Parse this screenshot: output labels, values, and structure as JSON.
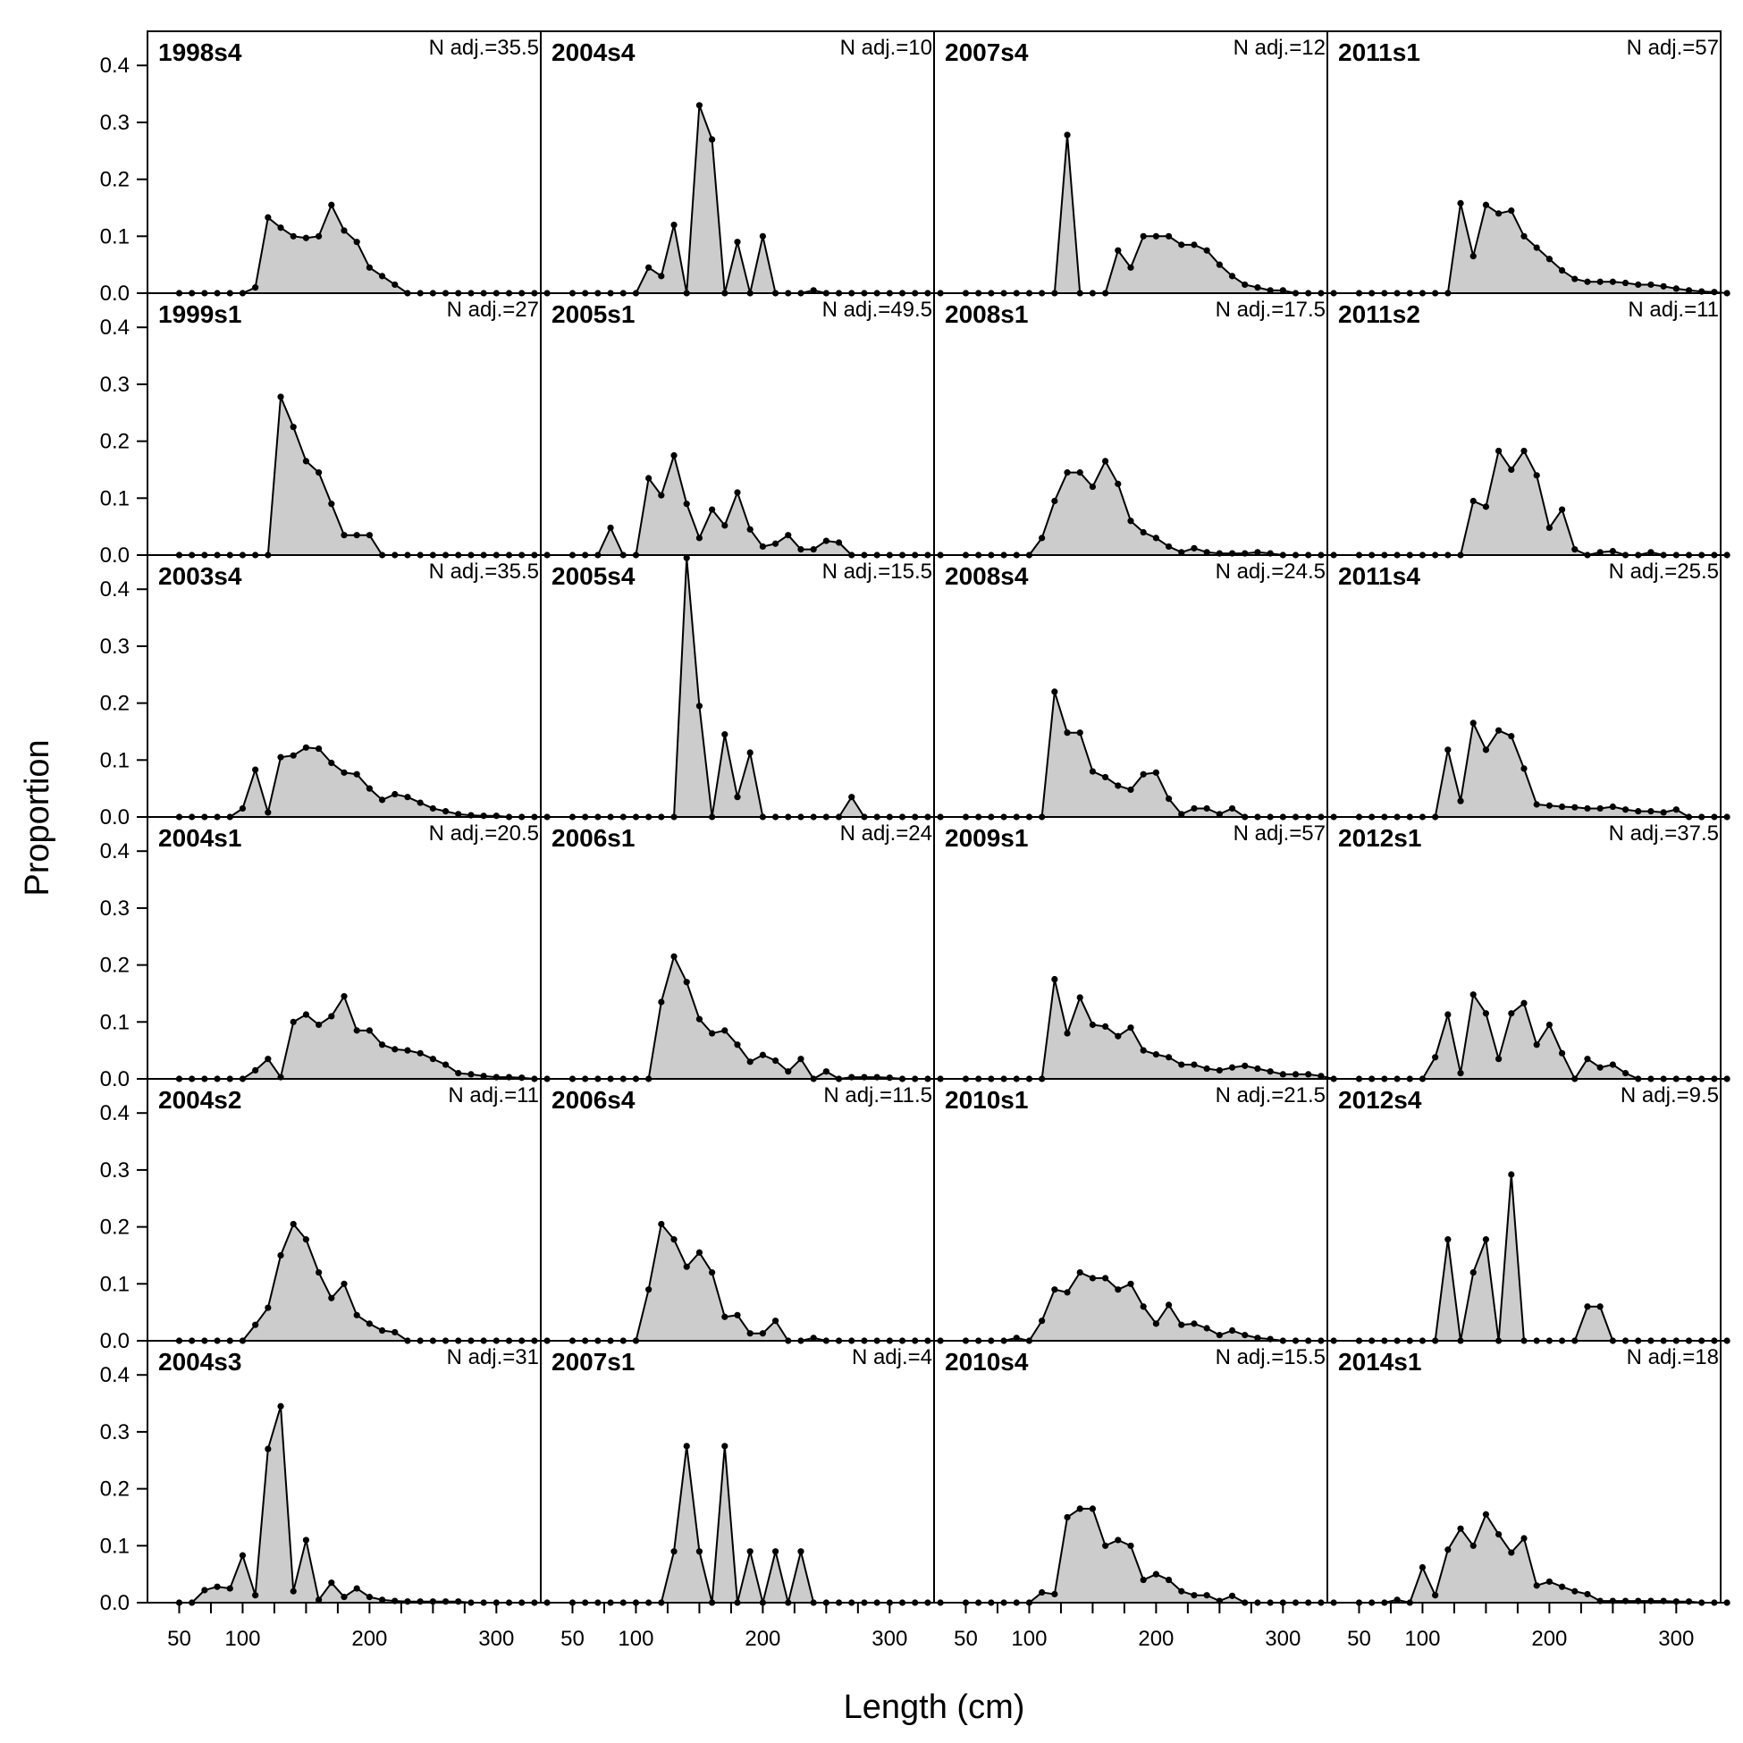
{
  "chart_data": {
    "type": "area",
    "xlabel": "Length (cm)",
    "ylabel": "Proportion",
    "xlim": [
      25,
      335
    ],
    "ylim": [
      0,
      0.46
    ],
    "x_ticks": [
      50,
      100,
      200,
      300
    ],
    "y_ticks": [
      "0.0",
      "0.1",
      "0.2",
      "0.3",
      "0.4"
    ],
    "bin_start": 50,
    "bin_width": 10,
    "fill_color": "#cccccc",
    "line_color": "#000000",
    "grid": false,
    "panels": [
      {
        "title": "1998s4",
        "n_adj": "N adj.=35.5",
        "values": [
          0,
          0,
          0,
          0,
          0,
          0,
          0.01,
          0.133,
          0.115,
          0.1,
          0.097,
          0.1,
          0.155,
          0.11,
          0.09,
          0.045,
          0.03,
          0.015,
          0,
          0,
          0,
          0,
          0,
          0,
          0,
          0,
          0,
          0,
          0,
          0
        ]
      },
      {
        "title": "2004s4",
        "n_adj": "N adj.=10",
        "values": [
          0,
          0,
          0,
          0,
          0,
          0,
          0.045,
          0.03,
          0.12,
          0,
          0.33,
          0.27,
          0,
          0.09,
          0,
          0.1,
          0,
          0,
          0,
          0.005,
          0,
          0,
          0,
          0,
          0,
          0,
          0,
          0,
          0,
          0
        ]
      },
      {
        "title": "2007s4",
        "n_adj": "N adj.=12",
        "values": [
          0,
          0,
          0,
          0,
          0,
          0,
          0,
          0,
          0.278,
          0,
          0,
          0,
          0.075,
          0.045,
          0.1,
          0.1,
          0.1,
          0.085,
          0.085,
          0.075,
          0.05,
          0.03,
          0.015,
          0.01,
          0.005,
          0.005,
          0,
          0,
          0,
          0
        ]
      },
      {
        "title": "2011s1",
        "n_adj": "N adj.=57",
        "values": [
          0,
          0,
          0,
          0,
          0,
          0,
          0,
          0,
          0.158,
          0.065,
          0.155,
          0.14,
          0.145,
          0.1,
          0.08,
          0.06,
          0.04,
          0.025,
          0.02,
          0.02,
          0.02,
          0.018,
          0.015,
          0.015,
          0.012,
          0.008,
          0.005,
          0.003,
          0.002,
          0
        ]
      },
      {
        "title": "1999s1",
        "n_adj": "N adj.=27",
        "values": [
          0,
          0,
          0,
          0,
          0,
          0,
          0,
          0,
          0.278,
          0.225,
          0.165,
          0.145,
          0.09,
          0.035,
          0.035,
          0.035,
          0,
          0,
          0,
          0,
          0,
          0,
          0,
          0,
          0,
          0,
          0,
          0,
          0,
          0
        ]
      },
      {
        "title": "2005s1",
        "n_adj": "N adj.=49.5",
        "values": [
          0,
          0,
          0,
          0.048,
          0,
          0,
          0.135,
          0.105,
          0.175,
          0.09,
          0.03,
          0.08,
          0.052,
          0.11,
          0.045,
          0.015,
          0.02,
          0.035,
          0.01,
          0.01,
          0.025,
          0.022,
          0,
          0,
          0,
          0,
          0,
          0,
          0,
          0
        ]
      },
      {
        "title": "2008s1",
        "n_adj": "N adj.=17.5",
        "values": [
          0,
          0,
          0,
          0,
          0,
          0,
          0.03,
          0.095,
          0.145,
          0.145,
          0.12,
          0.165,
          0.125,
          0.06,
          0.04,
          0.03,
          0.015,
          0.005,
          0.012,
          0.005,
          0.003,
          0.003,
          0.003,
          0.005,
          0.003,
          0,
          0,
          0,
          0,
          0
        ]
      },
      {
        "title": "2011s2",
        "n_adj": "N adj.=11",
        "values": [
          0,
          0,
          0,
          0,
          0,
          0,
          0,
          0,
          0,
          0.095,
          0.085,
          0.183,
          0.15,
          0.183,
          0.14,
          0.048,
          0.08,
          0.01,
          0,
          0.005,
          0.007,
          0,
          0,
          0.005,
          0,
          0,
          0,
          0,
          0,
          0
        ]
      },
      {
        "title": "2003s4",
        "n_adj": "N adj.=35.5",
        "values": [
          0,
          0,
          0,
          0,
          0,
          0.015,
          0.083,
          0.008,
          0.105,
          0.108,
          0.122,
          0.12,
          0.095,
          0.078,
          0.075,
          0.05,
          0.03,
          0.04,
          0.035,
          0.025,
          0.015,
          0.01,
          0.005,
          0.003,
          0.002,
          0.002,
          0,
          0,
          0,
          0
        ]
      },
      {
        "title": "2005s4",
        "n_adj": "N adj.=15.5",
        "values": [
          0,
          0,
          0,
          0,
          0,
          0,
          0,
          0,
          0,
          0.455,
          0.195,
          0,
          0.145,
          0.035,
          0.113,
          0,
          0,
          0,
          0,
          0,
          0,
          0,
          0.035,
          0,
          0,
          0,
          0,
          0,
          0,
          0
        ]
      },
      {
        "title": "2008s4",
        "n_adj": "N adj.=24.5",
        "values": [
          0,
          0,
          0,
          0,
          0,
          0,
          0,
          0.22,
          0.148,
          0.148,
          0.08,
          0.07,
          0.055,
          0.048,
          0.075,
          0.078,
          0.032,
          0.005,
          0.015,
          0.015,
          0.005,
          0.015,
          0,
          0,
          0,
          0,
          0,
          0,
          0,
          0
        ]
      },
      {
        "title": "2011s4",
        "n_adj": "N adj.=25.5",
        "values": [
          0,
          0,
          0,
          0,
          0,
          0,
          0,
          0.118,
          0.028,
          0.165,
          0.118,
          0.152,
          0.142,
          0.085,
          0.022,
          0.02,
          0.018,
          0.017,
          0.015,
          0.015,
          0.018,
          0.013,
          0.01,
          0.01,
          0.008,
          0.013,
          0,
          0,
          0,
          0
        ]
      },
      {
        "title": "2004s1",
        "n_adj": "N adj.=20.5",
        "values": [
          0,
          0,
          0,
          0,
          0,
          0,
          0.015,
          0.035,
          0.003,
          0.1,
          0.113,
          0.095,
          0.11,
          0.145,
          0.085,
          0.085,
          0.06,
          0.052,
          0.05,
          0.045,
          0.035,
          0.025,
          0.01,
          0.008,
          0.005,
          0.003,
          0.003,
          0.002,
          0,
          0
        ]
      },
      {
        "title": "2006s1",
        "n_adj": "N adj.=24",
        "values": [
          0,
          0,
          0,
          0,
          0,
          0,
          0,
          0.135,
          0.215,
          0.17,
          0.105,
          0.08,
          0.085,
          0.06,
          0.03,
          0.042,
          0.032,
          0.013,
          0.035,
          0,
          0.013,
          0,
          0.003,
          0.003,
          0.003,
          0.002,
          0,
          0,
          0,
          0
        ]
      },
      {
        "title": "2009s1",
        "n_adj": "N adj.=57",
        "values": [
          0,
          0,
          0,
          0,
          0,
          0,
          0,
          0.175,
          0.08,
          0.143,
          0.095,
          0.092,
          0.075,
          0.09,
          0.05,
          0.043,
          0.038,
          0.025,
          0.025,
          0.018,
          0.015,
          0.02,
          0.023,
          0.018,
          0.013,
          0.008,
          0.008,
          0.008,
          0.005,
          0
        ]
      },
      {
        "title": "2012s1",
        "n_adj": "N adj.=37.5",
        "values": [
          0,
          0,
          0,
          0,
          0,
          0,
          0.038,
          0.113,
          0.01,
          0.148,
          0.115,
          0.035,
          0.115,
          0.133,
          0.06,
          0.095,
          0.045,
          0,
          0.035,
          0.02,
          0.025,
          0.01,
          0,
          0,
          0,
          0,
          0,
          0,
          0,
          0
        ]
      },
      {
        "title": "2004s2",
        "n_adj": "N adj.=11",
        "values": [
          0,
          0,
          0,
          0,
          0,
          0,
          0.028,
          0.058,
          0.15,
          0.205,
          0.178,
          0.12,
          0.075,
          0.1,
          0.045,
          0.03,
          0.018,
          0.015,
          0,
          0,
          0,
          0,
          0,
          0,
          0,
          0,
          0,
          0,
          0,
          0
        ]
      },
      {
        "title": "2006s4",
        "n_adj": "N adj.=11.5",
        "values": [
          0,
          0,
          0,
          0,
          0,
          0,
          0.09,
          0.205,
          0.178,
          0.13,
          0.155,
          0.12,
          0.042,
          0.045,
          0.013,
          0.013,
          0.035,
          0,
          0,
          0.005,
          0,
          0,
          0,
          0,
          0,
          0,
          0,
          0,
          0,
          0
        ]
      },
      {
        "title": "2010s1",
        "n_adj": "N adj.=21.5",
        "values": [
          0,
          0,
          0,
          0,
          0.005,
          0,
          0.035,
          0.09,
          0.085,
          0.12,
          0.11,
          0.11,
          0.09,
          0.1,
          0.06,
          0.03,
          0.063,
          0.028,
          0.03,
          0.022,
          0.01,
          0.018,
          0.01,
          0.005,
          0.003,
          0,
          0,
          0,
          0,
          0
        ]
      },
      {
        "title": "2012s4",
        "n_adj": "N adj.=9.5",
        "values": [
          0,
          0,
          0,
          0,
          0,
          0,
          0,
          0.178,
          0,
          0.12,
          0.178,
          0,
          0.292,
          0,
          0,
          0,
          0,
          0,
          0.06,
          0.06,
          0,
          0,
          0,
          0,
          0,
          0,
          0,
          0,
          0,
          0
        ]
      },
      {
        "title": "2004s3",
        "n_adj": "N adj.=31",
        "values": [
          0,
          0,
          0.022,
          0.028,
          0.025,
          0.083,
          0.013,
          0.27,
          0.345,
          0.02,
          0.11,
          0.005,
          0.035,
          0.01,
          0.025,
          0.01,
          0.005,
          0.003,
          0.002,
          0.002,
          0.002,
          0.002,
          0.002,
          0,
          0,
          0,
          0,
          0,
          0,
          0
        ]
      },
      {
        "title": "2007s1",
        "n_adj": "N adj.=4",
        "values": [
          0,
          0,
          0,
          0,
          0,
          0,
          0,
          0,
          0.09,
          0.275,
          0.09,
          0,
          0.275,
          0,
          0.09,
          0,
          0.09,
          0,
          0.09,
          0,
          0,
          0,
          0,
          0,
          0,
          0,
          0,
          0,
          0,
          0
        ]
      },
      {
        "title": "2010s4",
        "n_adj": "N adj.=15.5",
        "values": [
          0,
          0,
          0,
          0,
          0,
          0,
          0.018,
          0.015,
          0.15,
          0.165,
          0.165,
          0.1,
          0.11,
          0.1,
          0.04,
          0.05,
          0.04,
          0.02,
          0.013,
          0.013,
          0.003,
          0.012,
          0,
          0,
          0,
          0,
          0,
          0,
          0,
          0
        ]
      },
      {
        "title": "2014s1",
        "n_adj": "N adj.=18",
        "values": [
          0,
          0,
          0,
          0.005,
          0,
          0.062,
          0.013,
          0.093,
          0.13,
          0.1,
          0.155,
          0.12,
          0.088,
          0.113,
          0.03,
          0.037,
          0.028,
          0.02,
          0.015,
          0.003,
          0.003,
          0.003,
          0.003,
          0.003,
          0.003,
          0.002,
          0.002,
          0,
          0,
          0
        ]
      }
    ]
  }
}
